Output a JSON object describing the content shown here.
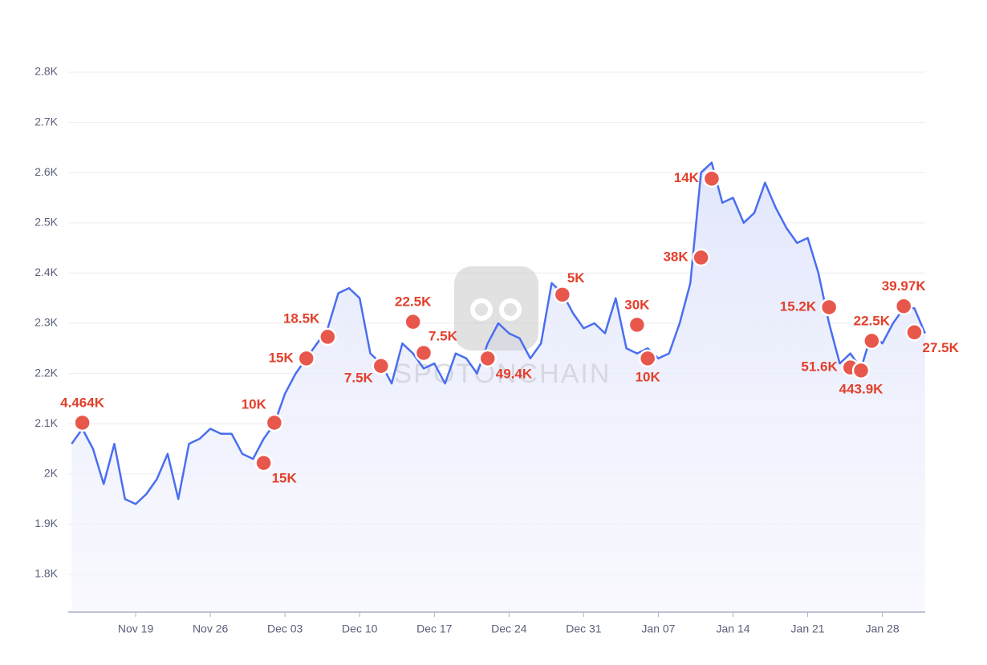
{
  "chart_data": {
    "type": "line",
    "watermark": "SPOTONCHAIN",
    "categories": [
      null,
      null,
      null,
      null,
      null,
      null,
      "Nov 19",
      null,
      null,
      null,
      null,
      null,
      null,
      "Nov 26",
      null,
      null,
      null,
      null,
      null,
      null,
      "Dec 03",
      null,
      null,
      null,
      null,
      null,
      null,
      "Dec 10",
      null,
      null,
      null,
      null,
      null,
      null,
      "Dec 17",
      null,
      null,
      null,
      null,
      null,
      null,
      "Dec 24",
      null,
      null,
      null,
      null,
      null,
      null,
      "Dec 31",
      null,
      null,
      null,
      null,
      null,
      null,
      "Jan 07",
      null,
      null,
      null,
      null,
      null,
      null,
      "Jan 14",
      null,
      null,
      null,
      null,
      null,
      null,
      "Jan 21",
      null,
      null,
      null,
      null,
      null,
      null,
      "Jan 28",
      null,
      null,
      null,
      null
    ],
    "series": [
      {
        "color": "#4a6ef0",
        "area": true,
        "values": [
          2060,
          2090,
          2050,
          1980,
          2060,
          1950,
          1940,
          1960,
          1990,
          2040,
          1950,
          2060,
          2070,
          2090,
          2080,
          2080,
          2040,
          2030,
          2070,
          2100,
          2160,
          2200,
          2230,
          2260,
          2290,
          2360,
          2370,
          2350,
          2240,
          2220,
          2180,
          2260,
          2240,
          2210,
          2220,
          2180,
          2240,
          2230,
          2200,
          2260,
          2300,
          2280,
          2270,
          2230,
          2260,
          2380,
          2360,
          2320,
          2290,
          2300,
          2280,
          2350,
          2250,
          2240,
          2250,
          2230,
          2240,
          2300,
          2380,
          2600,
          2620,
          2540,
          2550,
          2500,
          2520,
          2580,
          2530,
          2490,
          2460,
          2470,
          2400,
          2300,
          2220,
          2240,
          2210,
          2280,
          2260,
          2300,
          2330,
          2330,
          2280
        ]
      },
      {
        "type": "scatter",
        "color": "#e8574c",
        "label_color": "#e2402c",
        "values": [
          null,
          2102,
          null,
          null,
          null,
          null,
          null,
          null,
          null,
          null,
          null,
          null,
          null,
          null,
          null,
          null,
          null,
          null,
          2022,
          2102,
          null,
          null,
          2230,
          null,
          2273,
          null,
          null,
          null,
          null,
          2215,
          null,
          null,
          2303,
          2241,
          null,
          null,
          null,
          null,
          null,
          2230,
          null,
          null,
          null,
          null,
          null,
          null,
          2357,
          null,
          null,
          null,
          null,
          null,
          null,
          2297,
          2230,
          null,
          null,
          null,
          null,
          2431,
          2588,
          null,
          null,
          null,
          null,
          null,
          null,
          null,
          null,
          null,
          null,
          2332,
          null,
          2212,
          2206,
          2265,
          null,
          null,
          2334,
          2282,
          null
        ],
        "labels": [
          null,
          "4.464K",
          null,
          null,
          null,
          null,
          null,
          null,
          null,
          null,
          null,
          null,
          null,
          null,
          null,
          null,
          null,
          null,
          "15K",
          "10K",
          null,
          null,
          "15K",
          null,
          "18.5K",
          null,
          null,
          null,
          null,
          "7.5K",
          null,
          null,
          "22.5K",
          "7.5K",
          null,
          null,
          null,
          null,
          null,
          "49.4K",
          null,
          null,
          null,
          null,
          null,
          null,
          "5K",
          null,
          null,
          null,
          null,
          null,
          null,
          "30K",
          "10K",
          null,
          null,
          null,
          null,
          "38K",
          "14K",
          null,
          null,
          null,
          null,
          null,
          null,
          null,
          null,
          null,
          null,
          "15.2K",
          null,
          "51.6K",
          "443.9K",
          "22.5K",
          null,
          null,
          "39.97K",
          "27.5K",
          null
        ],
        "label_positions": [
          null,
          "above",
          null,
          null,
          null,
          null,
          null,
          null,
          null,
          null,
          null,
          null,
          null,
          null,
          null,
          null,
          null,
          null,
          "below-right",
          "above-left",
          null,
          null,
          "left",
          null,
          "above-left",
          null,
          null,
          null,
          null,
          "below-left",
          null,
          null,
          "above",
          "above-right",
          null,
          null,
          null,
          null,
          null,
          "below-right",
          null,
          null,
          null,
          null,
          null,
          null,
          "above-right",
          null,
          null,
          null,
          null,
          null,
          null,
          "above",
          "below",
          null,
          null,
          null,
          null,
          "left",
          "left",
          null,
          null,
          null,
          null,
          null,
          null,
          null,
          null,
          null,
          null,
          "left",
          null,
          "left",
          "below",
          "above",
          null,
          null,
          "above",
          "below-right",
          null
        ]
      }
    ],
    "ylim": [
      1725,
      2800
    ],
    "yticks": [
      {
        "value": 1800,
        "label": "1.8K"
      },
      {
        "value": 1900,
        "label": "1.9K"
      },
      {
        "value": 2000,
        "label": "2K"
      },
      {
        "value": 2100,
        "label": "2.1K"
      },
      {
        "value": 2200,
        "label": "2.2K"
      },
      {
        "value": 2300,
        "label": "2.3K"
      },
      {
        "value": 2400,
        "label": "2.4K"
      },
      {
        "value": 2500,
        "label": "2.5K"
      },
      {
        "value": 2600,
        "label": "2.6K"
      },
      {
        "value": 2700,
        "label": "2.7K"
      },
      {
        "value": 2800,
        "label": "2.8K"
      }
    ],
    "grid": true
  }
}
